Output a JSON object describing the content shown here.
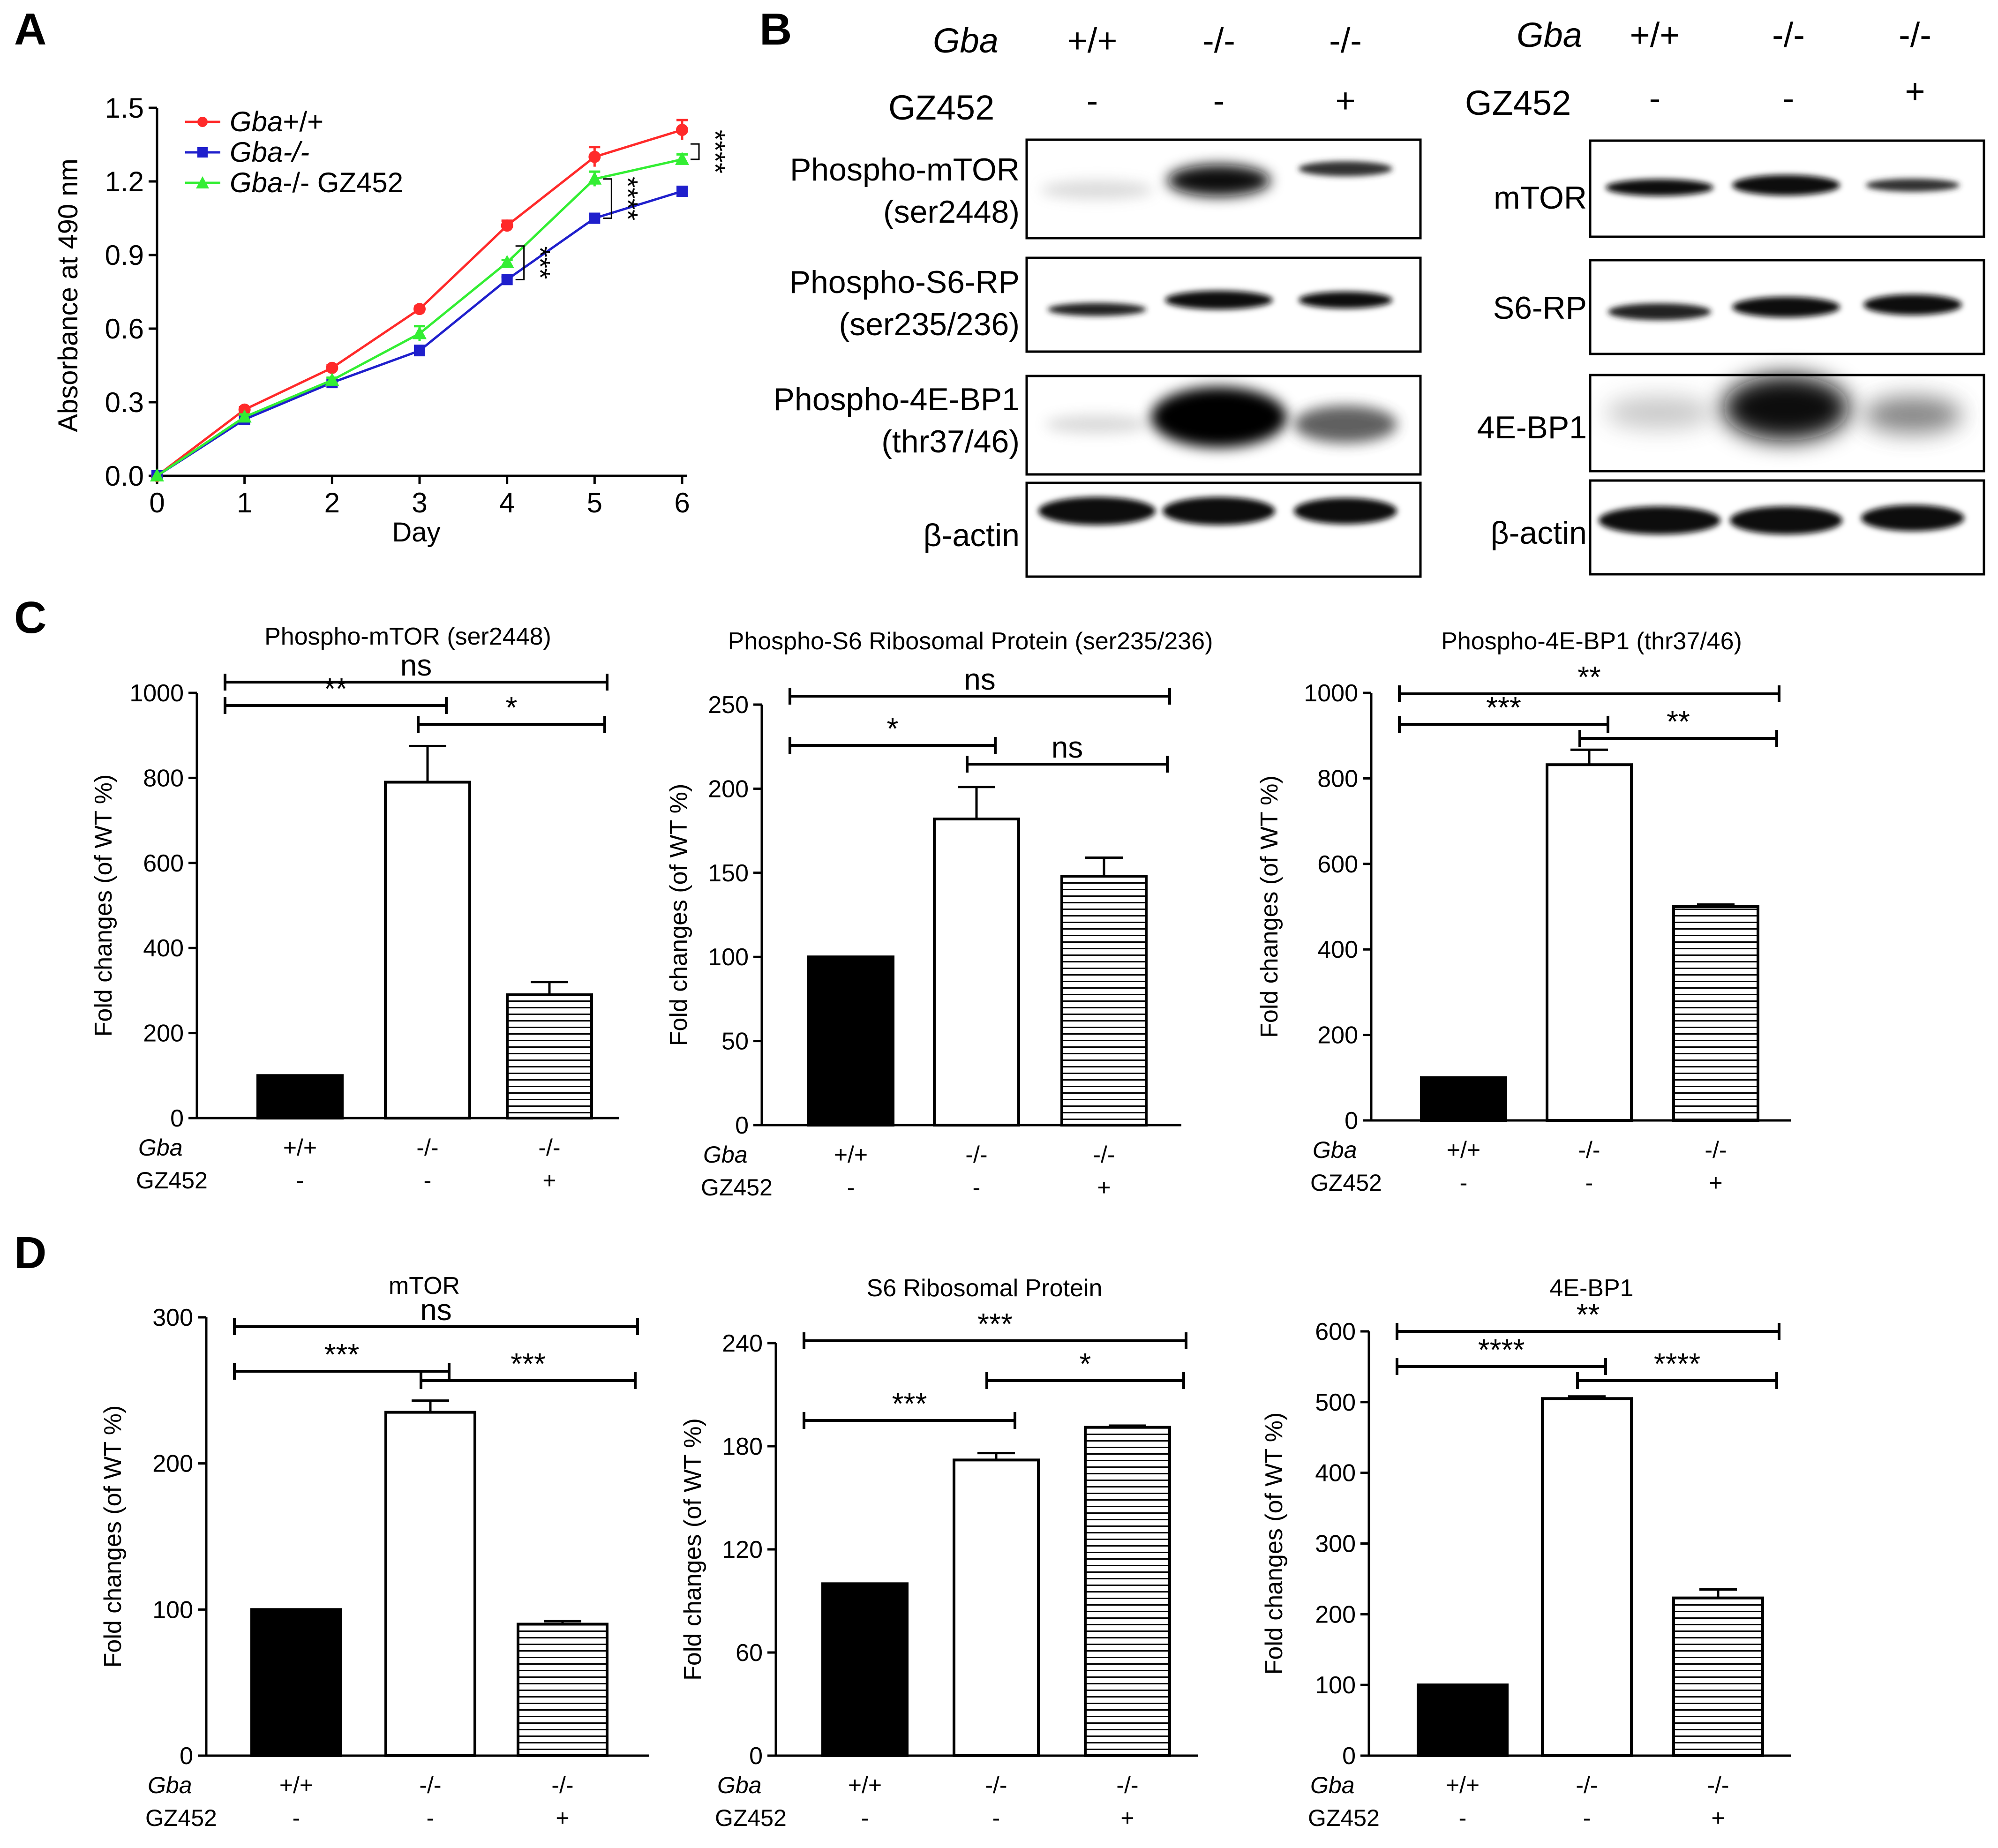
{
  "panels": {
    "a": "A",
    "b": "B",
    "c": "C",
    "d": "D"
  },
  "chart_data": [
    {
      "id": "A",
      "type": "line",
      "xlabel": "Day",
      "ylabel": "Absorbance at 490 nm",
      "x": [
        0,
        1,
        2,
        3,
        4,
        5,
        6
      ],
      "xticks": [
        "0",
        "1",
        "2",
        "3",
        "4",
        "5",
        "6"
      ],
      "ylim": [
        0,
        1.5
      ],
      "yticks": [
        "0.0",
        "0.3",
        "0.6",
        "0.9",
        "1.2",
        "1.5"
      ],
      "series": [
        {
          "name_it": "Gba",
          "name_rest": "+/+",
          "color": "#ff2a2a",
          "marker": "circle",
          "values": [
            0,
            0.27,
            0.44,
            0.68,
            1.02,
            1.3,
            1.41
          ],
          "errors": [
            0,
            0.01,
            0.01,
            0.01,
            0.02,
            0.04,
            0.04
          ]
        },
        {
          "name_it": "Gba",
          "name_rest": "-/-",
          "color": "#1f1fcc",
          "marker": "square",
          "values": [
            0,
            0.23,
            0.38,
            0.51,
            0.8,
            1.05,
            1.16
          ],
          "errors": [
            0,
            0.01,
            0.01,
            0.02,
            0.01,
            0.01,
            0.01
          ]
        },
        {
          "name_it": "Gba",
          "name_rest": "-/- GZ452",
          "color": "#33ee33",
          "marker": "triangle",
          "values": [
            0,
            0.24,
            0.39,
            0.58,
            0.87,
            1.21,
            1.29
          ],
          "errors": [
            0,
            0.01,
            0.01,
            0.03,
            0.01,
            0.03,
            0.02
          ]
        }
      ],
      "annotations": [
        {
          "day": 4,
          "text": "***"
        },
        {
          "day": 5,
          "text": "****"
        },
        {
          "day": 6,
          "text": "****"
        }
      ]
    },
    {
      "id": "C1",
      "type": "bar",
      "title": "Phospho-mTOR (ser2448)",
      "ylabel": "Fold changes (of WT %)",
      "ylim": [
        0,
        1000
      ],
      "yticks": [
        "0",
        "200",
        "400",
        "600",
        "800",
        "1000"
      ],
      "values": [
        100,
        790,
        290
      ],
      "errors": [
        0,
        85,
        30
      ],
      "sig": [
        {
          "from": 0,
          "to": 2,
          "text": "ns"
        },
        {
          "from": 0,
          "to": 1,
          "text": "**"
        },
        {
          "from": 1,
          "to": 2,
          "text": "*"
        }
      ]
    },
    {
      "id": "C2",
      "type": "bar",
      "title": "Phospho-S6 Ribosomal  Protein (ser235/236)",
      "ylabel": "Fold changes (of WT %)",
      "ylim": [
        0,
        250
      ],
      "yticks": [
        "0",
        "50",
        "100",
        "150",
        "200",
        "250"
      ],
      "values": [
        100,
        182,
        148
      ],
      "errors": [
        0,
        19,
        11
      ],
      "sig": [
        {
          "from": 0,
          "to": 2,
          "text": "ns"
        },
        {
          "from": 0,
          "to": 1,
          "text": "*"
        },
        {
          "from": 1,
          "to": 2,
          "text": "ns"
        }
      ]
    },
    {
      "id": "C3",
      "type": "bar",
      "title": "Phospho-4E-BP1 (thr37/46)",
      "ylabel": "Fold changes (of WT %)",
      "ylim": [
        0,
        1000
      ],
      "yticks": [
        "0",
        "200",
        "400",
        "600",
        "800",
        "1000"
      ],
      "values": [
        100,
        832,
        500
      ],
      "errors": [
        0,
        35,
        5
      ],
      "sig": [
        {
          "from": 0,
          "to": 2,
          "text": "**"
        },
        {
          "from": 0,
          "to": 1,
          "text": "***"
        },
        {
          "from": 1,
          "to": 2,
          "text": "**"
        }
      ]
    },
    {
      "id": "D1",
      "type": "bar",
      "title": "mTOR",
      "ylabel": "Fold changes (of WT %)",
      "ylim": [
        0,
        300
      ],
      "yticks": [
        "0",
        "100",
        "200",
        "300"
      ],
      "values": [
        100,
        235,
        90
      ],
      "errors": [
        0,
        8,
        2
      ],
      "sig": [
        {
          "from": 0,
          "to": 2,
          "text": "ns"
        },
        {
          "from": 0,
          "to": 1,
          "text": "***"
        },
        {
          "from": 1,
          "to": 2,
          "text": "***"
        }
      ]
    },
    {
      "id": "D2",
      "type": "bar",
      "title": "S6 Ribosomal Protein",
      "ylabel": "Fold changes (of WT %)",
      "ylim": [
        0,
        240
      ],
      "yticks": [
        "0",
        "60",
        "120",
        "180",
        "240"
      ],
      "values": [
        100,
        172,
        191
      ],
      "errors": [
        0,
        4,
        1
      ],
      "sig": [
        {
          "from": 0,
          "to": 2,
          "text": "***"
        },
        {
          "from": 0,
          "to": 1,
          "text": "***"
        },
        {
          "from": 1,
          "to": 2,
          "text": "*"
        }
      ]
    },
    {
      "id": "D3",
      "type": "bar",
      "title": "4E-BP1",
      "ylabel": "Fold changes (of WT %)",
      "ylim": [
        0,
        600
      ],
      "yticks": [
        "0",
        "100",
        "200",
        "300",
        "400",
        "500",
        "600"
      ],
      "values": [
        100,
        505,
        223
      ],
      "errors": [
        0,
        3,
        12
      ],
      "sig": [
        {
          "from": 0,
          "to": 2,
          "text": "**"
        },
        {
          "from": 0,
          "to": 1,
          "text": "****"
        },
        {
          "from": 1,
          "to": 2,
          "text": "****"
        }
      ]
    }
  ],
  "group_labels": {
    "gba": "Gba",
    "gz": "GZ452",
    "gba_values": [
      "+/+",
      "-/-",
      "-/-"
    ],
    "gz_values": [
      "-",
      "-",
      "+"
    ]
  },
  "blots": {
    "left": {
      "bands": [
        {
          "label1": "Phospho-mTOR",
          "label2": "(ser2448)"
        },
        {
          "label1": "Phospho-S6-RP",
          "label2": "(ser235/236)"
        },
        {
          "label1": "Phospho-4E-BP1",
          "label2": "(thr37/46)"
        },
        {
          "label1": "β-actin",
          "label2": ""
        }
      ]
    },
    "right": {
      "bands": [
        {
          "label1": "mTOR"
        },
        {
          "label1": "S6-RP"
        },
        {
          "label1": "4E-BP1"
        },
        {
          "label1": "β-actin"
        }
      ]
    }
  }
}
